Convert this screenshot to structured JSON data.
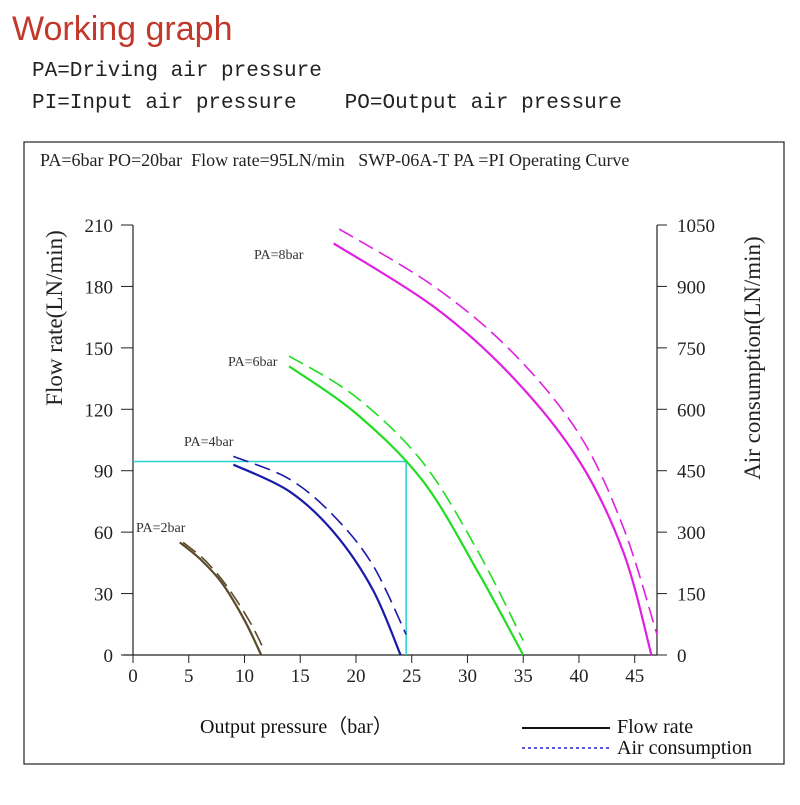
{
  "header": {
    "title": "Working graph",
    "def_pa": "PA=Driving air pressure",
    "def_pi": "PI=Input air pressure",
    "def_po": "PO=Output air pressure"
  },
  "chart_data": {
    "type": "line",
    "title": "PA=6bar PO=20bar  Flow rate=95LN/min   SWP-06A-T PA =PI Operating Curve",
    "xlabel": "Output pressure（bar）",
    "ylabel": "Flow rate(LN/min)",
    "y2label": "Air consumption(LN/min)",
    "xlim": [
      0,
      47
    ],
    "ylim": [
      0,
      210
    ],
    "y2lim": [
      0,
      1050
    ],
    "x_ticks": [
      "0",
      "5",
      "10",
      "15",
      "20",
      "25",
      "30",
      "35",
      "40",
      "45"
    ],
    "y_ticks": [
      "0",
      "30",
      "60",
      "90",
      "120",
      "150",
      "180",
      "210"
    ],
    "y2_ticks": [
      "0",
      "150",
      "300",
      "450",
      "600",
      "750",
      "900",
      "1050"
    ],
    "legend": {
      "position": "bottom-right",
      "flow_label": "Flow rate",
      "air_label": "Air consumption"
    },
    "reference": {
      "x": 24.5,
      "y": 94.5
    },
    "series": [
      {
        "name": "PA=2bar",
        "color": "#5a4a2a",
        "flow": {
          "x": [
            4.2,
            6.0,
            8.0,
            10.0,
            11.5
          ],
          "y": [
            55,
            47,
            35,
            17,
            0
          ]
        },
        "air": {
          "x": [
            4.5,
            6.5,
            8.5,
            10.5,
            11.8
          ],
          "y": [
            55,
            46,
            33,
            16,
            2
          ]
        }
      },
      {
        "name": "PA=4bar",
        "color": "#1a1aa8",
        "flow": {
          "x": [
            9.0,
            14.0,
            18.0,
            21.5,
            24.0
          ],
          "y": [
            93,
            80,
            60,
            32,
            0
          ]
        },
        "air": {
          "x": [
            9.0,
            14.0,
            18.0,
            21.5,
            24.5
          ],
          "y": [
            97,
            86,
            68,
            44,
            10
          ]
        }
      },
      {
        "name": "PA=6bar",
        "color": "#22dd22",
        "flow": {
          "x": [
            14.0,
            20.0,
            26.0,
            31.0,
            35.0
          ],
          "y": [
            141,
            118,
            85,
            40,
            0
          ]
        },
        "air": {
          "x": [
            14.0,
            20.0,
            26.0,
            31.0,
            35.0
          ],
          "y": [
            146,
            126,
            94,
            50,
            7
          ]
        }
      },
      {
        "name": "PA=8bar",
        "color": "#e020e0",
        "flow": {
          "x": [
            18.0,
            27.0,
            34.0,
            40.0,
            44.0,
            46.5
          ],
          "y": [
            201,
            170,
            136,
            95,
            50,
            0
          ]
        },
        "air": {
          "x": [
            18.5,
            27.0,
            34.0,
            40.0,
            44.0,
            47.0
          ],
          "y": [
            208,
            180,
            148,
            108,
            62,
            10
          ]
        }
      }
    ]
  }
}
